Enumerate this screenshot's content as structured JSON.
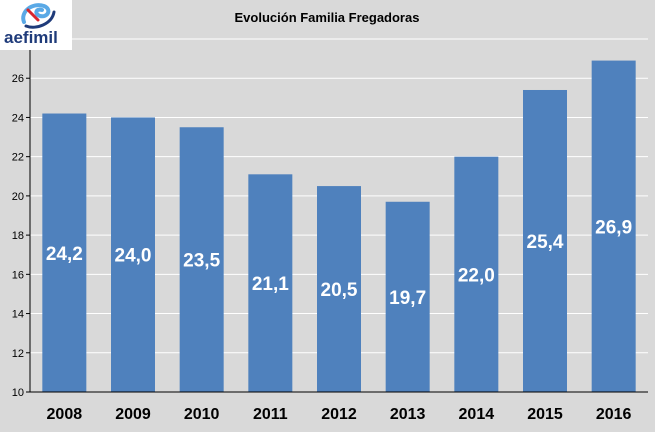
{
  "logo": {
    "text": "aefimil"
  },
  "colors": {
    "background": "#d9d9d9",
    "bar": "#4f81bd",
    "grid": "#ffffff",
    "axis": "#000000",
    "bar_label": "#ffffff"
  },
  "chart_data": {
    "type": "bar",
    "title": "Evolución Familia Fregadoras",
    "xlabel": "",
    "ylabel": "",
    "categories": [
      "2008",
      "2009",
      "2010",
      "2011",
      "2012",
      "2013",
      "2014",
      "2015",
      "2016"
    ],
    "values": [
      24.2,
      24.0,
      23.5,
      21.1,
      20.5,
      19.7,
      22.0,
      25.4,
      26.9
    ],
    "data_labels": [
      "24,2",
      "24,0",
      "23,5",
      "21,1",
      "20,5",
      "19,7",
      "22,0",
      "25,4",
      "26,9"
    ],
    "ylim": [
      10,
      28
    ],
    "yticks": [
      10,
      12,
      14,
      16,
      18,
      20,
      22,
      24,
      26
    ],
    "grid": true,
    "legend": "none"
  }
}
